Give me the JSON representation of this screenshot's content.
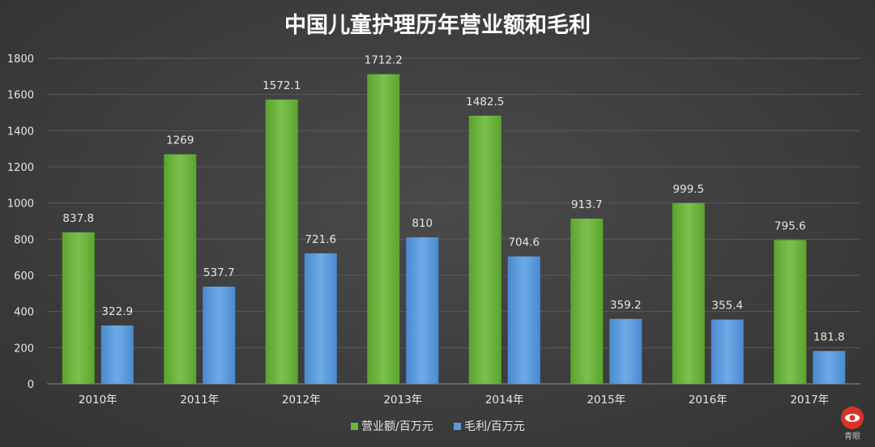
{
  "chart_data": {
    "type": "bar",
    "title": "中国儿童护理历年营业额和毛利",
    "categories": [
      "2010年",
      "2011年",
      "2012年",
      "2013年",
      "2014年",
      "2015年",
      "2016年",
      "2017年"
    ],
    "series": [
      {
        "name": "营业额/百万元",
        "values": [
          837.8,
          1269,
          1572.1,
          1712.2,
          1482.5,
          913.7,
          999.5,
          795.6
        ],
        "labels": [
          "837.8",
          "1269",
          "1572.1",
          "1712.2",
          "1482.5",
          "913.7",
          "999.5",
          "795.6"
        ],
        "color": "#6db33f"
      },
      {
        "name": "毛利/百万元",
        "values": [
          322.9,
          537.7,
          721.6,
          810,
          704.6,
          359.2,
          355.4,
          181.8
        ],
        "labels": [
          "322.9",
          "537.7",
          "721.6",
          "810",
          "704.6",
          "359.2",
          "355.4",
          "181.8"
        ],
        "color": "#5b9bd5"
      }
    ],
    "y_ticks": [
      "0",
      "200",
      "400",
      "600",
      "800",
      "1000",
      "1200",
      "1400",
      "1600",
      "1800"
    ],
    "ylim": [
      0,
      1800
    ],
    "grid": true,
    "legend_position": "bottom"
  },
  "watermark": {
    "text": "青眼",
    "color": "#d9322a"
  }
}
